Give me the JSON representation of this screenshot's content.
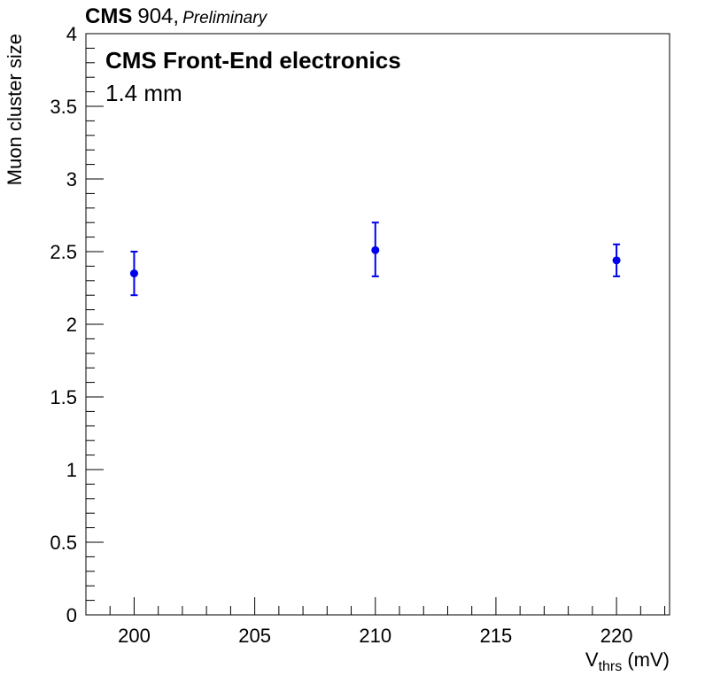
{
  "header": {
    "cms": "CMS",
    "site": "904,",
    "status": "Preliminary"
  },
  "annotations": {
    "line1": "CMS Front-End electronics",
    "line2": "1.4 mm"
  },
  "chart_data": {
    "type": "scatter",
    "xlabel_main": "V",
    "xlabel_sub": "thrs",
    "xlabel_unit": " (mV)",
    "ylabel": "Muon cluster size",
    "xlim": [
      198,
      222.2
    ],
    "ylim": [
      0,
      4
    ],
    "x_ticks": [
      200,
      205,
      210,
      215,
      220
    ],
    "y_ticks": [
      0,
      0.5,
      1,
      1.5,
      2,
      2.5,
      3,
      3.5,
      4
    ],
    "series": [
      {
        "color": "#0000ee",
        "points": [
          {
            "x": 200,
            "y": 2.35,
            "err_low": 0.15,
            "err_high": 0.15
          },
          {
            "x": 210,
            "y": 2.51,
            "err_low": 0.18,
            "err_high": 0.19
          },
          {
            "x": 220,
            "y": 2.44,
            "err_low": 0.11,
            "err_high": 0.11
          }
        ]
      }
    ]
  }
}
